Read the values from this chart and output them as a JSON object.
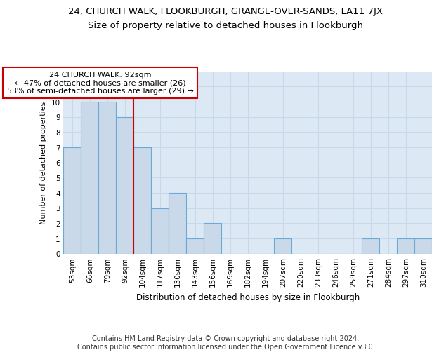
{
  "title": "24, CHURCH WALK, FLOOKBURGH, GRANGE-OVER-SANDS, LA11 7JX",
  "subtitle": "Size of property relative to detached houses in Flookburgh",
  "xlabel": "Distribution of detached houses by size in Flookburgh",
  "ylabel": "Number of detached properties",
  "categories": [
    "53sqm",
    "66sqm",
    "79sqm",
    "92sqm",
    "104sqm",
    "117sqm",
    "130sqm",
    "143sqm",
    "156sqm",
    "169sqm",
    "182sqm",
    "194sqm",
    "207sqm",
    "220sqm",
    "233sqm",
    "246sqm",
    "259sqm",
    "271sqm",
    "284sqm",
    "297sqm",
    "310sqm"
  ],
  "values": [
    7,
    10,
    10,
    9,
    7,
    3,
    4,
    1,
    2,
    0,
    0,
    0,
    1,
    0,
    0,
    0,
    0,
    1,
    0,
    1,
    1
  ],
  "bar_color": "#c9d9ea",
  "bar_edge_color": "#6aaad4",
  "vline_index": 3,
  "vline_color": "#cc0000",
  "annotation_text": "24 CHURCH WALK: 92sqm\n← 47% of detached houses are smaller (26)\n53% of semi-detached houses are larger (29) →",
  "annotation_box_color": "#ffffff",
  "annotation_box_edge": "#cc0000",
  "ylim": [
    0,
    12
  ],
  "yticks": [
    0,
    1,
    2,
    3,
    4,
    5,
    6,
    7,
    8,
    9,
    10,
    11,
    12
  ],
  "grid_color": "#c8d8e8",
  "background_color": "#dce9f5",
  "footer": "Contains HM Land Registry data © Crown copyright and database right 2024.\nContains public sector information licensed under the Open Government Licence v3.0.",
  "title_fontsize": 9.5,
  "subtitle_fontsize": 9.5,
  "xlabel_fontsize": 8.5,
  "ylabel_fontsize": 8.0,
  "annotation_fontsize": 8.0,
  "footer_fontsize": 7.0,
  "tick_fontsize": 7.5
}
